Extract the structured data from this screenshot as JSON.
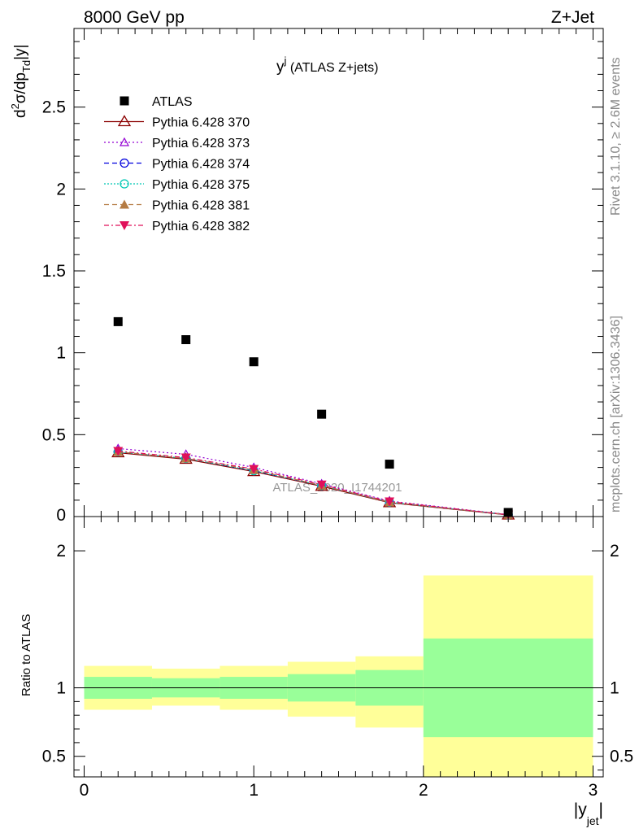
{
  "header": {
    "left": "8000 GeV pp",
    "right": "Z+Jet"
  },
  "side_labels": {
    "rivet": "Rivet 3.1.10, ≥ 2.6M events",
    "mcplots": "mcplots.cern.ch [arXiv:1306.3436]"
  },
  "chart_data": {
    "type": "scatter",
    "title": "y^j (ATLAS Z+jets)",
    "title_main": "y",
    "title_sup": "j",
    "title_rest": " (ATLAS Z+jets)",
    "analysis_label": "ATLAS_2020_I1744201",
    "xlabel": "|y_jet|",
    "xlabel_main": "|y",
    "xlabel_sub": "jet",
    "xlabel_end": "|",
    "ylabel": "d²σ/dp_Td|y|",
    "ylabel_parts": {
      "d": "d",
      "sup": "2",
      "mid": "σ/dp",
      "sub": "Td",
      "end": "|y|"
    },
    "xlim": [
      -0.06,
      3.06
    ],
    "ylim": [
      0,
      2.98
    ],
    "x_ticks": [
      "0",
      "1",
      "2",
      "3"
    ],
    "y_ticks": [
      "0.5",
      "1",
      "1.5",
      "2",
      "2.5"
    ],
    "y_zero_label": "0",
    "bins": [
      {
        "low": 0.0,
        "high": 0.4
      },
      {
        "low": 0.4,
        "high": 0.8
      },
      {
        "low": 0.8,
        "high": 1.2
      },
      {
        "low": 1.2,
        "high": 1.6
      },
      {
        "low": 1.6,
        "high": 2.0
      },
      {
        "low": 2.0,
        "high": 3.0
      }
    ],
    "data": {
      "name": "ATLAS",
      "x": [
        0.2,
        0.6,
        1.0,
        1.4,
        1.8,
        2.5
      ],
      "y": [
        1.19,
        1.08,
        0.945,
        0.625,
        0.32,
        0.025
      ]
    },
    "series": [
      {
        "name": "Pythia 6.428 370",
        "color": "#8b0000",
        "dash": "",
        "marker": "triangle-open",
        "x": [
          0.2,
          0.6,
          1.0,
          1.4,
          1.8,
          2.5
        ],
        "y": [
          0.39,
          0.35,
          0.275,
          0.185,
          0.085,
          0.01
        ]
      },
      {
        "name": "Pythia 6.428 373",
        "color": "#9400d3",
        "dash": "2,3",
        "marker": "triangle-open-small",
        "x": [
          0.2,
          0.6,
          1.0,
          1.4,
          1.8,
          2.5
        ],
        "y": [
          0.415,
          0.38,
          0.3,
          0.2,
          0.095,
          0.012
        ]
      },
      {
        "name": "Pythia 6.428 374",
        "color": "#0000dd",
        "dash": "6,4",
        "marker": "circle-open",
        "x": [
          0.2,
          0.6,
          1.0,
          1.4,
          1.8,
          2.5
        ],
        "y": [
          0.395,
          0.355,
          0.28,
          0.19,
          0.088,
          0.011
        ]
      },
      {
        "name": "Pythia 6.428 375",
        "color": "#00c8b4",
        "dash": "2,2",
        "marker": "circle-open",
        "x": [
          0.2,
          0.6,
          1.0,
          1.4,
          1.8,
          2.5
        ],
        "y": [
          0.395,
          0.355,
          0.28,
          0.19,
          0.088,
          0.011
        ]
      },
      {
        "name": "Pythia 6.428 381",
        "color": "#b57c44",
        "dash": "6,4",
        "marker": "triangle-filled",
        "x": [
          0.2,
          0.6,
          1.0,
          1.4,
          1.8,
          2.5
        ],
        "y": [
          0.395,
          0.355,
          0.285,
          0.19,
          0.088,
          0.011
        ]
      },
      {
        "name": "Pythia 6.428 382",
        "color": "#e0105a",
        "dash": "6,3,2,3",
        "marker": "triangle-down-filled",
        "x": [
          0.2,
          0.6,
          1.0,
          1.4,
          1.8,
          2.5
        ],
        "y": [
          0.4,
          0.36,
          0.29,
          0.195,
          0.092,
          0.011
        ]
      }
    ],
    "ratio": {
      "ylabel": "Ratio to ATLAS",
      "ylim": [
        0.35,
        2.25
      ],
      "y_ticks": [
        "0.5",
        "1",
        "2"
      ],
      "stat_band": [
        {
          "low": 0.92,
          "high": 1.08
        },
        {
          "low": 0.93,
          "high": 1.07
        },
        {
          "low": 0.92,
          "high": 1.08
        },
        {
          "low": 0.9,
          "high": 1.1
        },
        {
          "low": 0.87,
          "high": 1.13
        },
        {
          "low": 0.64,
          "high": 1.36
        }
      ],
      "total_band": [
        {
          "low": 0.84,
          "high": 1.16
        },
        {
          "low": 0.87,
          "high": 1.14
        },
        {
          "low": 0.84,
          "high": 1.16
        },
        {
          "low": 0.79,
          "high": 1.19
        },
        {
          "low": 0.71,
          "high": 1.23
        },
        {
          "low": 0.35,
          "high": 1.82
        }
      ],
      "colors": {
        "stat": "#99ff99",
        "total": "#ffff99"
      }
    }
  }
}
